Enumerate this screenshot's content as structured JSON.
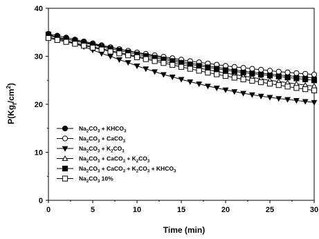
{
  "chart_data": {
    "type": "line",
    "title": "",
    "xlabel": "Time (min)",
    "ylabel": {
      "base": "P(Kg",
      "sub": "f",
      "mid": "/cm",
      "sup": "2",
      "end": ")"
    },
    "xlim": [
      0,
      30
    ],
    "ylim": [
      0,
      40
    ],
    "x_ticks": [
      0,
      5,
      10,
      15,
      20,
      25,
      30
    ],
    "y_ticks": [
      0,
      10,
      20,
      30,
      40
    ],
    "grid": false,
    "legend_position": "lower-left",
    "x": [
      0,
      1,
      2,
      3,
      4,
      5,
      6,
      7,
      8,
      9,
      10,
      11,
      12,
      13,
      14,
      15,
      16,
      17,
      18,
      19,
      20,
      21,
      22,
      23,
      24,
      25,
      26,
      27,
      28,
      29,
      30
    ],
    "series": [
      {
        "name": "Na2CO3 + KHCO3",
        "label_parts": [
          [
            "Na",
            ""
          ],
          [
            "2",
            "sub"
          ],
          [
            "CO",
            ""
          ],
          [
            "3",
            "sub"
          ],
          [
            " + KHCO",
            ""
          ],
          [
            "3",
            "sub"
          ]
        ],
        "marker": "circle",
        "fill": "#000000",
        "values": [
          34.7,
          34.3,
          33.9,
          33.5,
          33.1,
          32.7,
          32.3,
          31.9,
          31.5,
          31.1,
          30.7,
          30.35,
          30.0,
          29.65,
          29.3,
          28.95,
          28.6,
          28.3,
          28.0,
          27.7,
          27.4,
          27.15,
          26.9,
          26.7,
          26.5,
          26.3,
          26.1,
          25.95,
          25.8,
          25.65,
          25.5
        ]
      },
      {
        "name": "Na2CO3 + CaCO3",
        "label_parts": [
          [
            "Na",
            ""
          ],
          [
            "2",
            "sub"
          ],
          [
            "CO",
            ""
          ],
          [
            "3",
            "sub"
          ],
          [
            " + CaCO",
            ""
          ],
          [
            "3",
            "sub"
          ]
        ],
        "marker": "circle",
        "fill": "#ffffff",
        "values": [
          34.3,
          33.95,
          33.6,
          33.25,
          32.9,
          32.55,
          32.2,
          31.85,
          31.5,
          31.15,
          30.8,
          30.5,
          30.2,
          29.9,
          29.6,
          29.3,
          29.0,
          28.75,
          28.5,
          28.25,
          28.0,
          27.8,
          27.6,
          27.4,
          27.2,
          27.0,
          26.8,
          26.65,
          26.5,
          26.35,
          26.2
        ]
      },
      {
        "name": "Na2CO3 + K2CO3",
        "label_parts": [
          [
            "Na",
            ""
          ],
          [
            "2",
            "sub"
          ],
          [
            "CO",
            ""
          ],
          [
            "3",
            "sub"
          ],
          [
            " + K",
            ""
          ],
          [
            "2",
            "sub"
          ],
          [
            "CO",
            ""
          ],
          [
            "3",
            "sub"
          ]
        ],
        "marker": "triangle-down",
        "fill": "#000000",
        "values": [
          34.6,
          33.9,
          33.3,
          32.6,
          32.0,
          31.3,
          30.6,
          30.0,
          29.3,
          28.7,
          28.0,
          27.4,
          26.8,
          26.2,
          25.7,
          25.2,
          24.7,
          24.25,
          23.8,
          23.4,
          23.0,
          22.65,
          22.3,
          22.0,
          21.7,
          21.45,
          21.2,
          21.0,
          20.8,
          20.6,
          20.4
        ]
      },
      {
        "name": "Na2CO3 + CaCO3 + K2CO3",
        "label_parts": [
          [
            "Na",
            ""
          ],
          [
            "2",
            "sub"
          ],
          [
            "CO",
            ""
          ],
          [
            "3",
            "sub"
          ],
          [
            " + CaCO",
            ""
          ],
          [
            "3",
            "sub"
          ],
          [
            " + K",
            ""
          ],
          [
            "2",
            "sub"
          ],
          [
            "CO",
            ""
          ],
          [
            "3",
            "sub"
          ]
        ],
        "marker": "triangle-up",
        "fill": "#ffffff",
        "values": [
          34.0,
          33.6,
          33.2,
          32.8,
          32.4,
          32.0,
          31.6,
          31.2,
          30.8,
          30.4,
          30.0,
          29.65,
          29.3,
          28.95,
          28.6,
          28.25,
          27.9,
          27.55,
          27.2,
          26.85,
          26.5,
          26.2,
          25.9,
          25.6,
          25.3,
          25.0,
          24.75,
          24.5,
          24.25,
          24.0,
          23.8
        ]
      },
      {
        "name": "Na2CO3 + CaCO3 + K2CO3 + KHCO3",
        "label_parts": [
          [
            "Na",
            ""
          ],
          [
            "2",
            "sub"
          ],
          [
            "CO",
            ""
          ],
          [
            "3",
            "sub"
          ],
          [
            " + CaCO",
            ""
          ],
          [
            "3",
            "sub"
          ],
          [
            " + K",
            ""
          ],
          [
            "2",
            "sub"
          ],
          [
            "CO",
            ""
          ],
          [
            "3",
            "sub"
          ],
          [
            " + KHCO",
            ""
          ],
          [
            "3",
            "sub"
          ]
        ],
        "marker": "square",
        "fill": "#000000",
        "values": [
          34.4,
          34.0,
          33.6,
          33.2,
          32.8,
          32.4,
          32.0,
          31.6,
          31.2,
          30.8,
          30.4,
          30.05,
          29.7,
          29.35,
          29.0,
          28.65,
          28.3,
          28.0,
          27.7,
          27.4,
          27.1,
          26.85,
          26.6,
          26.4,
          26.2,
          26.0,
          25.8,
          25.6,
          25.4,
          25.2,
          25.0
        ]
      },
      {
        "name": "Na2CO3 10%",
        "label_parts": [
          [
            "Na",
            ""
          ],
          [
            "2",
            "sub"
          ],
          [
            "CO",
            ""
          ],
          [
            "3",
            "sub"
          ],
          [
            " 10%",
            ""
          ]
        ],
        "marker": "square",
        "fill": "#ffffff",
        "values": [
          33.8,
          33.4,
          33.0,
          32.6,
          32.2,
          31.8,
          31.4,
          31.0,
          30.6,
          30.2,
          29.8,
          29.4,
          29.0,
          28.6,
          28.2,
          27.8,
          27.4,
          27.0,
          26.6,
          26.25,
          25.9,
          25.55,
          25.2,
          24.9,
          24.6,
          24.3,
          24.0,
          23.7,
          23.4,
          23.15,
          22.9
        ]
      }
    ]
  }
}
